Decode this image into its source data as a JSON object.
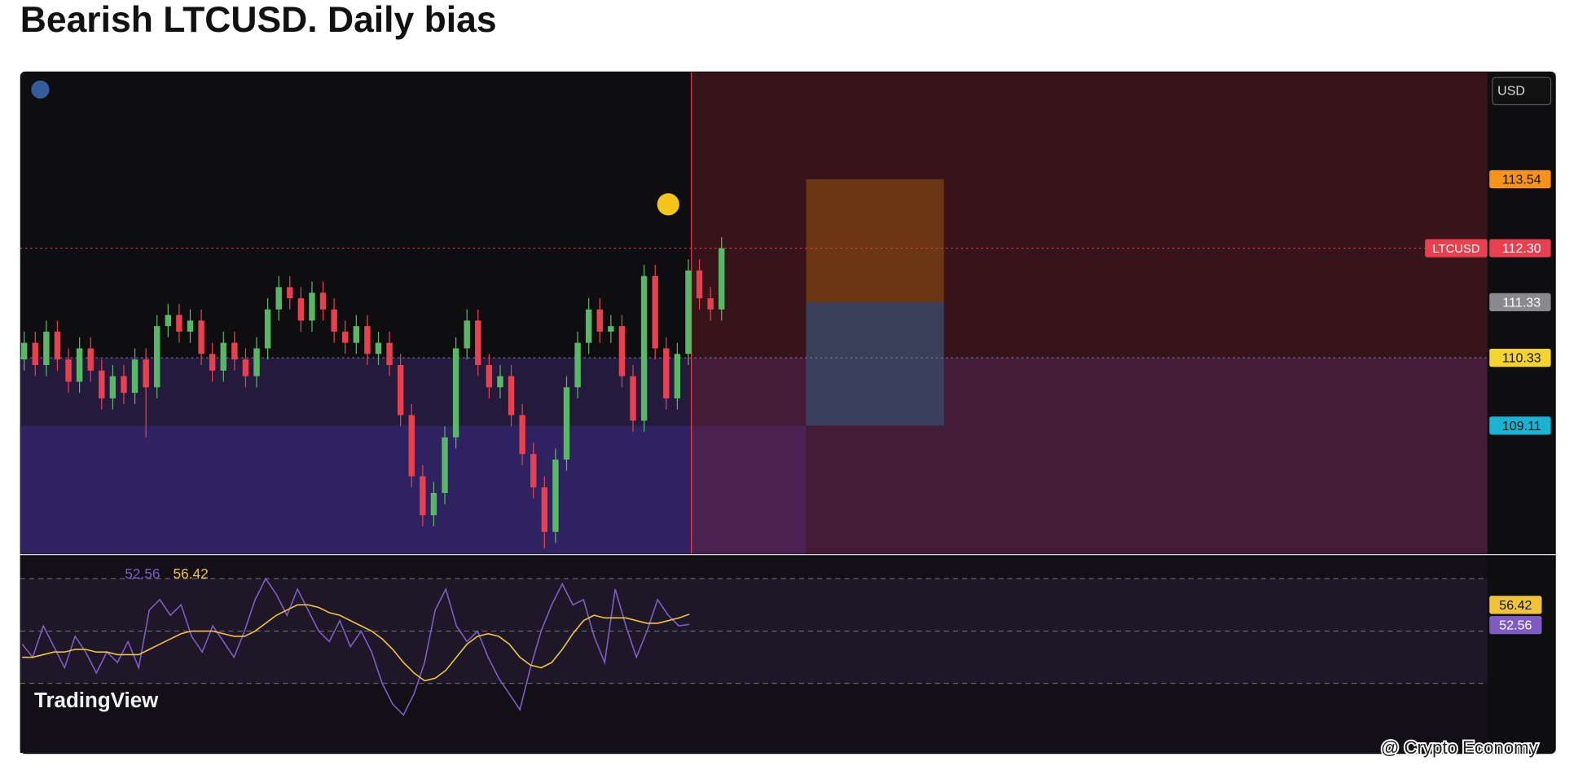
{
  "header": {
    "title": "Bearish LTCUSD. Daily bias",
    "credit": "@ Crypto Economy",
    "brand": "TradingView"
  },
  "chart_data": [
    {
      "type": "candlestick",
      "symbol": "LTCUSD",
      "currency": "USD",
      "ylim": [
        106.81,
        115.46
      ],
      "up_color": "#59b866",
      "down_color": "#e8404f",
      "open": [
        110.3,
        110.6,
        110.2,
        110.8,
        110.3,
        109.9,
        110.5,
        110.1,
        109.6,
        110.0,
        109.7,
        110.3,
        109.8,
        110.9,
        111.1,
        110.8,
        111.0,
        110.4,
        110.1,
        110.6,
        110.3,
        110.0,
        110.5,
        111.2,
        111.6,
        111.4,
        111.0,
        111.5,
        111.2,
        110.8,
        110.6,
        110.9,
        110.4,
        110.6,
        110.2,
        109.3,
        108.2,
        107.5,
        107.9,
        108.9,
        110.5,
        111.0,
        110.2,
        109.8,
        110.0,
        109.3,
        108.6,
        108.0,
        107.2,
        108.5,
        109.8,
        110.6,
        111.2,
        110.8,
        110.9,
        110.0,
        109.2,
        111.8,
        110.5,
        109.6,
        110.4,
        111.9,
        111.4,
        111.2
      ],
      "high": [
        110.8,
        110.8,
        111.0,
        111.0,
        110.5,
        110.7,
        110.7,
        110.3,
        110.2,
        110.2,
        110.5,
        110.5,
        111.1,
        111.3,
        111.3,
        111.2,
        111.2,
        110.6,
        110.8,
        110.8,
        110.5,
        110.7,
        111.4,
        111.8,
        111.8,
        111.6,
        111.7,
        111.7,
        111.4,
        111.0,
        111.1,
        111.1,
        110.8,
        110.8,
        110.4,
        109.5,
        108.4,
        108.1,
        109.1,
        110.7,
        111.2,
        111.2,
        110.4,
        110.2,
        110.2,
        109.5,
        108.8,
        108.2,
        108.7,
        110.0,
        110.8,
        111.4,
        111.4,
        111.1,
        111.1,
        110.2,
        112.0,
        112.0,
        110.7,
        110.6,
        112.1,
        112.1,
        111.6,
        112.5
      ],
      "low": [
        110.1,
        110.0,
        110.0,
        110.1,
        109.7,
        109.7,
        109.9,
        109.4,
        109.4,
        109.5,
        109.5,
        108.9,
        109.6,
        110.7,
        110.6,
        110.6,
        110.2,
        109.9,
        109.9,
        110.1,
        109.8,
        109.8,
        110.3,
        111.0,
        111.2,
        110.8,
        110.8,
        111.0,
        110.6,
        110.4,
        110.4,
        110.2,
        110.2,
        110.0,
        109.1,
        108.0,
        107.3,
        107.3,
        107.7,
        108.7,
        110.3,
        110.0,
        109.6,
        109.6,
        109.1,
        108.4,
        107.8,
        106.9,
        107.0,
        108.3,
        109.6,
        110.4,
        110.6,
        110.6,
        109.8,
        109.0,
        109.0,
        110.3,
        109.4,
        109.4,
        110.2,
        111.2,
        111.0,
        111.0
      ],
      "close": [
        110.6,
        110.2,
        110.8,
        110.3,
        109.9,
        110.5,
        110.1,
        109.6,
        110.0,
        109.7,
        110.3,
        109.8,
        110.9,
        111.1,
        110.8,
        111.0,
        110.4,
        110.1,
        110.6,
        110.3,
        110.0,
        110.5,
        111.2,
        111.6,
        111.4,
        111.0,
        111.5,
        111.2,
        110.8,
        110.6,
        110.9,
        110.4,
        110.6,
        110.2,
        109.3,
        108.2,
        107.5,
        107.9,
        108.9,
        110.5,
        111.0,
        110.2,
        109.8,
        110.0,
        109.3,
        108.6,
        108.0,
        107.2,
        108.5,
        109.8,
        110.6,
        111.2,
        110.8,
        110.9,
        110.0,
        109.2,
        111.8,
        110.5,
        109.6,
        110.4,
        111.9,
        111.4,
        111.2,
        112.3
      ],
      "levels": [
        {
          "value": 113.54,
          "color": "#f7931a"
        },
        {
          "value": 112.3,
          "label": "112.30",
          "color": "#e8404f"
        },
        {
          "value": 111.33,
          "color": "#8a8a8e"
        },
        {
          "value": 110.33,
          "color": "#f5d432"
        },
        {
          "value": 109.11,
          "color": "#1ab4d2"
        }
      ]
    },
    {
      "type": "line",
      "ylim": [
        3.5,
        78.8
      ],
      "levels": [
        70,
        50,
        30
      ],
      "series": [
        {
          "color": "#7e5cc4",
          "values": [
            45,
            40,
            52,
            44,
            36,
            48,
            42,
            34,
            42,
            38,
            46,
            36,
            58,
            62,
            56,
            60,
            48,
            42,
            52,
            46,
            40,
            50,
            62,
            70,
            64,
            56,
            66,
            58,
            50,
            46,
            54,
            44,
            50,
            42,
            30,
            22,
            18,
            26,
            38,
            58,
            66,
            52,
            46,
            50,
            40,
            32,
            26,
            20,
            36,
            50,
            60,
            68,
            60,
            62,
            48,
            38,
            66,
            52,
            40,
            50,
            62,
            56,
            52,
            52.56
          ]
        },
        {
          "color": "#f0c43a",
          "values": [
            40,
            40,
            41,
            42,
            42,
            43,
            43,
            42,
            42,
            41,
            41,
            41,
            43,
            45,
            47,
            49,
            50,
            50,
            50,
            49,
            48,
            48,
            50,
            53,
            56,
            58,
            60,
            60,
            59,
            57,
            56,
            54,
            52,
            50,
            47,
            43,
            38,
            34,
            31,
            32,
            35,
            40,
            45,
            48,
            49,
            48,
            45,
            40,
            37,
            36,
            38,
            43,
            49,
            54,
            56,
            55,
            55,
            55,
            54,
            53,
            53,
            54,
            55,
            56.42
          ]
        }
      ]
    }
  ]
}
